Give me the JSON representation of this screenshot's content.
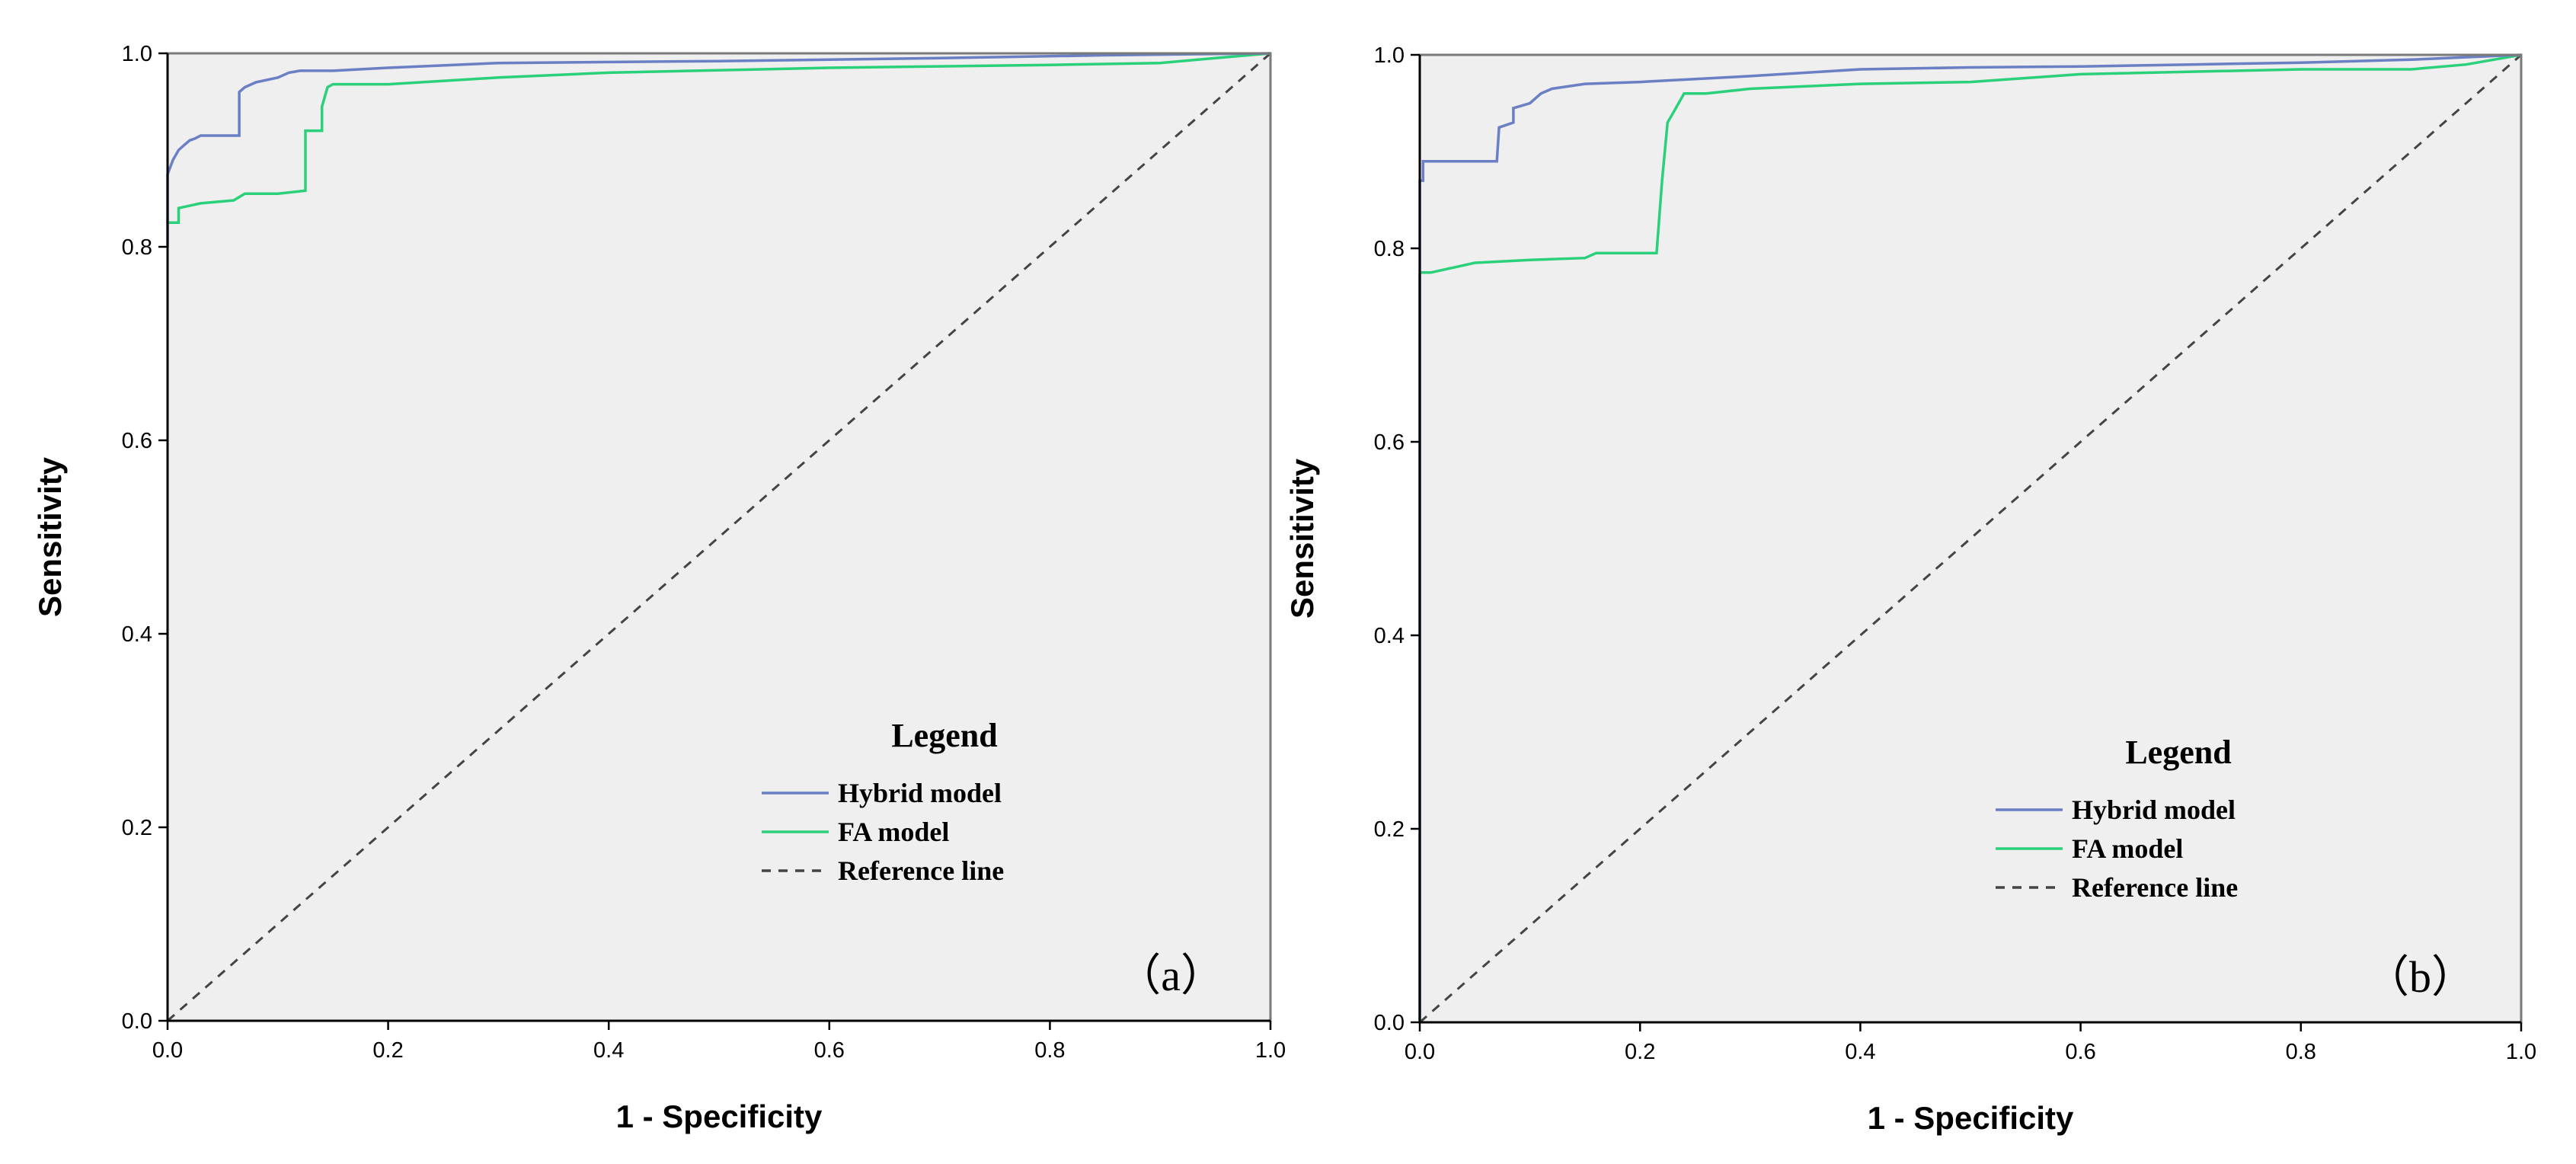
{
  "colors": {
    "plot_bg": "#efefef",
    "frame": "#7a7a7a",
    "hybrid": "#6a7fc4",
    "fa": "#2bd07a",
    "reference": "#444444"
  },
  "chart_data": [
    {
      "type": "line",
      "panel_label": "（a）",
      "xlabel": "1 - Specificity",
      "ylabel": "Sensitivity",
      "xlim": [
        0,
        1
      ],
      "ylim": [
        0,
        1
      ],
      "xticks": [
        0.0,
        0.2,
        0.4,
        0.6,
        0.8,
        1.0
      ],
      "yticks": [
        0.0,
        0.2,
        0.4,
        0.6,
        0.8,
        1.0
      ],
      "xtick_labels": [
        "0.0",
        "0.2",
        "0.4",
        "0.6",
        "0.8",
        "1.0"
      ],
      "ytick_labels": [
        "0.0",
        "0.2",
        "0.4",
        "0.6",
        "0.8",
        "1.0"
      ],
      "legend": {
        "title": "Legend",
        "entries": [
          "Hybrid model",
          "FA model",
          "Reference line"
        ],
        "position": "bottom-right"
      },
      "series": [
        {
          "name": "Hybrid model",
          "x": [
            0.0,
            0.0,
            0.005,
            0.01,
            0.015,
            0.02,
            0.025,
            0.03,
            0.04,
            0.065,
            0.065,
            0.07,
            0.08,
            0.1,
            0.11,
            0.12,
            0.15,
            0.2,
            0.3,
            0.5,
            0.7,
            0.85,
            1.0
          ],
          "y": [
            0.8,
            0.875,
            0.89,
            0.9,
            0.905,
            0.91,
            0.912,
            0.915,
            0.915,
            0.915,
            0.96,
            0.965,
            0.97,
            0.975,
            0.98,
            0.982,
            0.982,
            0.985,
            0.99,
            0.992,
            0.995,
            0.998,
            1.0
          ]
        },
        {
          "name": "FA model",
          "x": [
            0.0,
            0.0,
            0.01,
            0.01,
            0.03,
            0.06,
            0.07,
            0.1,
            0.125,
            0.125,
            0.14,
            0.14,
            0.145,
            0.15,
            0.2,
            0.3,
            0.4,
            0.6,
            0.8,
            0.9,
            0.95,
            1.0
          ],
          "y": [
            0.83,
            0.825,
            0.825,
            0.84,
            0.845,
            0.848,
            0.855,
            0.855,
            0.858,
            0.92,
            0.92,
            0.945,
            0.965,
            0.968,
            0.968,
            0.975,
            0.98,
            0.985,
            0.988,
            0.99,
            0.995,
            1.0
          ]
        },
        {
          "name": "Reference line",
          "x": [
            0,
            1
          ],
          "y": [
            0,
            1
          ]
        }
      ]
    },
    {
      "type": "line",
      "panel_label": "（b）",
      "xlabel": "1 - Specificity",
      "ylabel": "Sensitivity",
      "xlim": [
        0,
        1
      ],
      "ylim": [
        0,
        1
      ],
      "xticks": [
        0.0,
        0.2,
        0.4,
        0.6,
        0.8,
        1.0
      ],
      "yticks": [
        0.0,
        0.2,
        0.4,
        0.6,
        0.8,
        1.0
      ],
      "xtick_labels": [
        "0.0",
        "0.2",
        "0.4",
        "0.6",
        "0.8",
        "1.0"
      ],
      "ytick_labels": [
        "0.0",
        "0.2",
        "0.4",
        "0.6",
        "0.8",
        "1.0"
      ],
      "legend": {
        "title": "Legend",
        "entries": [
          "Hybrid model",
          "FA model",
          "Reference line"
        ],
        "position": "bottom-right"
      },
      "series": [
        {
          "name": "Hybrid model",
          "x": [
            0.0,
            0.0,
            0.003,
            0.003,
            0.07,
            0.072,
            0.085,
            0.085,
            0.1,
            0.11,
            0.12,
            0.15,
            0.2,
            0.25,
            0.3,
            0.4,
            0.5,
            0.6,
            0.7,
            0.8,
            0.9,
            1.0
          ],
          "y": [
            0.0,
            0.87,
            0.87,
            0.89,
            0.89,
            0.925,
            0.93,
            0.945,
            0.95,
            0.96,
            0.965,
            0.97,
            0.972,
            0.975,
            0.978,
            0.985,
            0.987,
            0.988,
            0.99,
            0.992,
            0.995,
            1.0
          ]
        },
        {
          "name": "FA model",
          "x": [
            0.0,
            0.0,
            0.01,
            0.03,
            0.05,
            0.1,
            0.15,
            0.16,
            0.2,
            0.215,
            0.22,
            0.225,
            0.23,
            0.235,
            0.24,
            0.26,
            0.3,
            0.4,
            0.5,
            0.6,
            0.8,
            0.9,
            0.95,
            1.0
          ],
          "y": [
            0.0,
            0.775,
            0.775,
            0.78,
            0.785,
            0.788,
            0.79,
            0.795,
            0.795,
            0.795,
            0.87,
            0.93,
            0.94,
            0.95,
            0.96,
            0.96,
            0.965,
            0.97,
            0.972,
            0.98,
            0.985,
            0.985,
            0.99,
            1.0
          ]
        },
        {
          "name": "Reference line",
          "x": [
            0,
            1
          ],
          "y": [
            0,
            1
          ]
        }
      ]
    }
  ]
}
